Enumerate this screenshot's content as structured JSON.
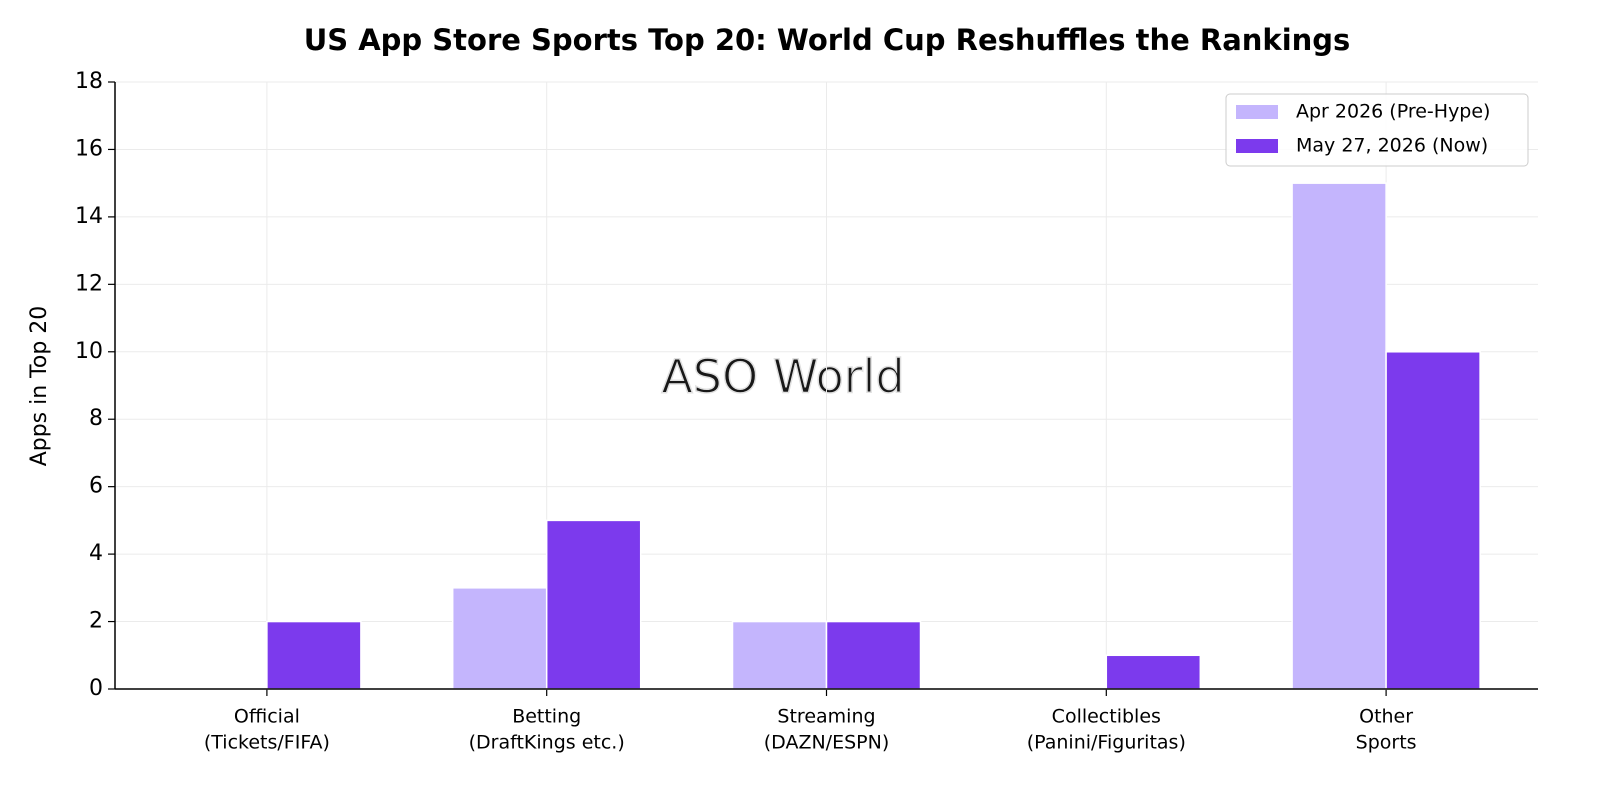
{
  "chart_data": {
    "type": "bar",
    "title": "US App Store Sports Top 20: World Cup Reshuffles the Rankings",
    "y_label": "Apps in Top 20",
    "watermark": "ASO World",
    "categories": [
      [
        "Official",
        "(Tickets/FIFA)"
      ],
      [
        "Betting",
        "(DraftKings etc.)"
      ],
      [
        "Streaming",
        "(DAZN/ESPN)"
      ],
      [
        "Collectibles",
        "(Panini/Figuritas)"
      ],
      [
        "Other",
        "Sports"
      ]
    ],
    "series": [
      {
        "name": "Apr 2026 (Pre-Hype)",
        "color": "#c4b5fd",
        "values": [
          0,
          3,
          2,
          0,
          15
        ]
      },
      {
        "name": "May 27, 2026 (Now)",
        "color": "#7c3aed",
        "values": [
          2,
          5,
          2,
          1,
          10
        ]
      }
    ],
    "ylim": [
      0,
      18
    ],
    "yticks": [
      0,
      2,
      4,
      6,
      8,
      10,
      12,
      14,
      16,
      18
    ],
    "grid": true,
    "legend": "upper right"
  }
}
